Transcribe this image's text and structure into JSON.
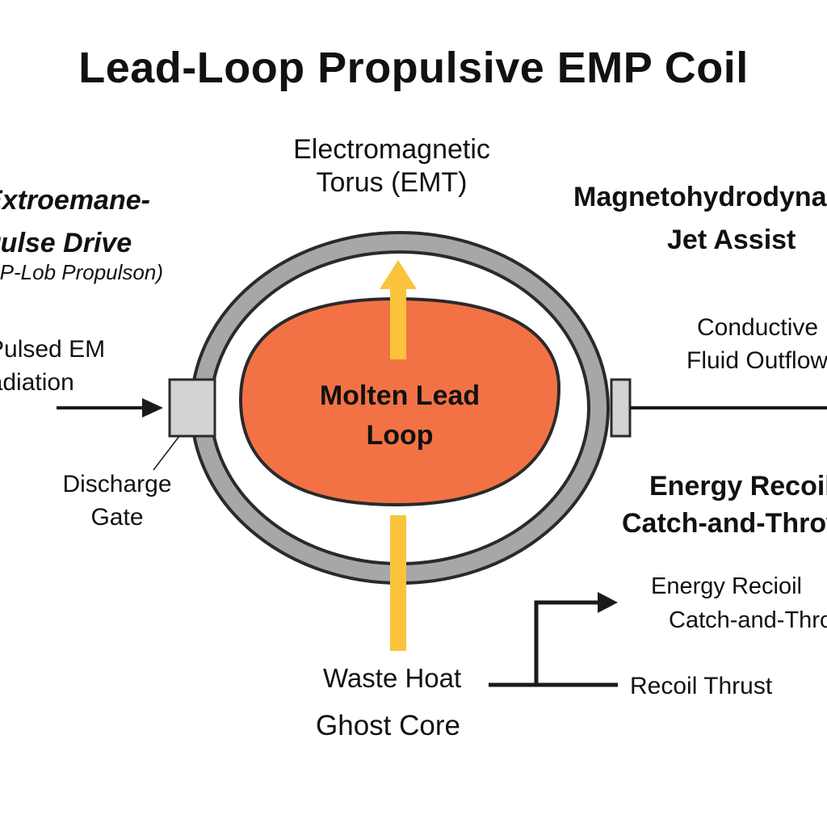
{
  "title": "Lead-Loop Propulsive EMP Coil",
  "labels": {
    "emt": [
      "Electromagnetic",
      "Torus (EMT)"
    ],
    "left_header": [
      "Extroemane-",
      "Pulse Drive"
    ],
    "left_sub": "(EMP-Lob Propulson)",
    "pulsed": [
      "Pulsed EM",
      "Radiation"
    ],
    "discharge": [
      "Discharge",
      "Gate"
    ],
    "core": [
      "Molten Lead",
      "Loop"
    ],
    "mhd": [
      "Magnetohydrodynamic",
      "Jet Assist"
    ],
    "conductive": [
      "Conductive",
      "Fluid Outflow"
    ],
    "energy_bold": [
      "Energy Recoil",
      "Catch-and-Throw"
    ],
    "energy_small": [
      "Energy Recioil",
      "Catch-and-Throw"
    ],
    "recoil": "Recoil Thrust",
    "waste": "Waste Hoat",
    "ghost": "Ghost Core"
  },
  "colors": {
    "ring": "#a7a7a7",
    "ring_stroke": "#2a2a2a",
    "core": "#f37245",
    "arrow": "#f9c33c",
    "gate": "#d3d3d3",
    "line": "#1a1a1a"
  }
}
